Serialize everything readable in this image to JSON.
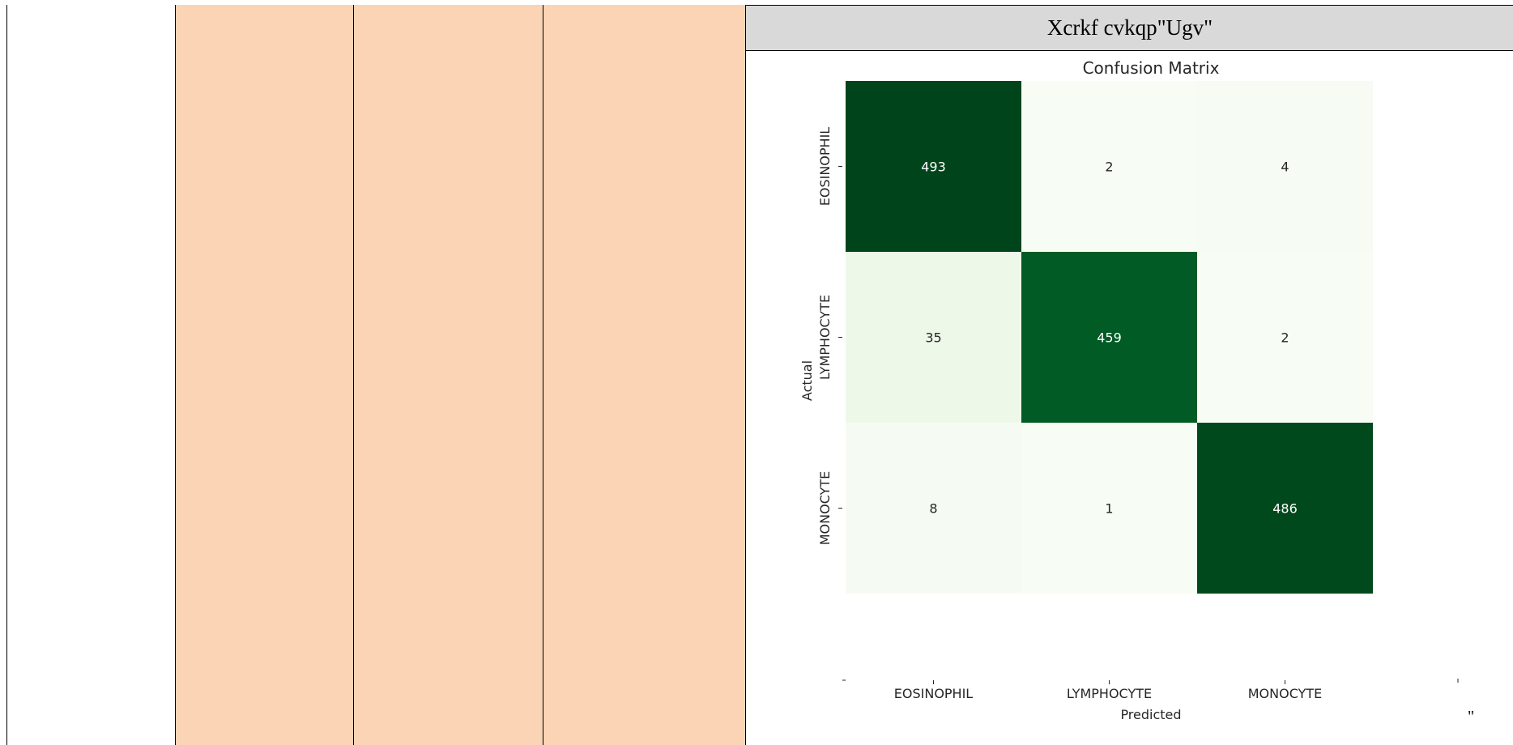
{
  "panel": {
    "header": "Xcrkf cvkqp\"Ugv\""
  },
  "footer_mark": "\"",
  "chart_data": {
    "type": "heatmap",
    "title": "Confusion Matrix",
    "xlabel": "Predicted",
    "ylabel": "Actual",
    "x_categories": [
      "EOSINOPHIL",
      "LYMPHOCYTE",
      "MONOCYTE"
    ],
    "y_categories": [
      "EOSINOPHIL",
      "LYMPHOCYTE",
      "MONOCYTE"
    ],
    "values": [
      [
        493,
        2,
        4
      ],
      [
        35,
        459,
        2
      ],
      [
        8,
        1,
        486
      ]
    ],
    "colormap": "Greens",
    "low_color": "#f7fcf5",
    "high_color": "#00441b",
    "grid": false,
    "colorbar": false
  }
}
